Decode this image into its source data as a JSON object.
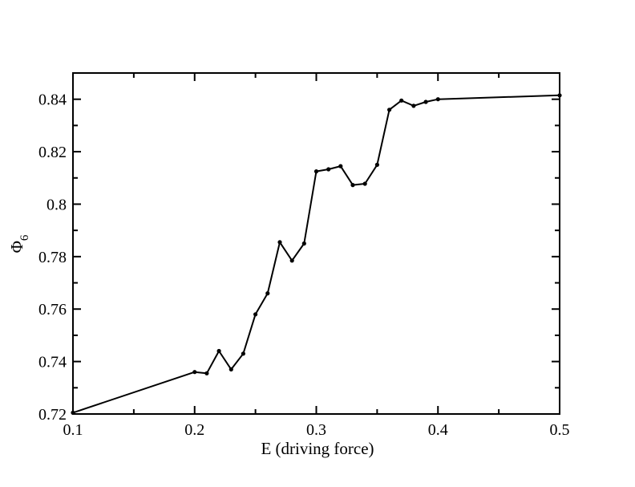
{
  "chart_data": {
    "type": "line",
    "xlabel": "E (driving force)",
    "ylabel": "Φ",
    "ylabel_subscript": "6",
    "xlim": [
      0.1,
      0.5
    ],
    "ylim": [
      0.72,
      0.85
    ],
    "x_ticks": [
      {
        "value": 0.1,
        "label": "0.1"
      },
      {
        "value": 0.2,
        "label": "0.2"
      },
      {
        "value": 0.3,
        "label": "0.3"
      },
      {
        "value": 0.4,
        "label": "0.4"
      },
      {
        "value": 0.5,
        "label": "0.5"
      }
    ],
    "y_ticks": [
      {
        "value": 0.72,
        "label": "0.72"
      },
      {
        "value": 0.74,
        "label": "0.74"
      },
      {
        "value": 0.76,
        "label": "0.76"
      },
      {
        "value": 0.78,
        "label": "0.78"
      },
      {
        "value": 0.8,
        "label": "0.8"
      },
      {
        "value": 0.82,
        "label": "0.82"
      },
      {
        "value": 0.84,
        "label": "0.84"
      }
    ],
    "x_minor_step": 0.05,
    "y_minor_step": 0.01,
    "grid": false,
    "legend": "none",
    "line_color": "#000000",
    "series": [
      {
        "x": [
          0.1,
          0.2,
          0.21,
          0.22,
          0.23,
          0.24,
          0.25,
          0.26,
          0.27,
          0.28,
          0.29,
          0.3,
          0.31,
          0.32,
          0.33,
          0.34,
          0.35,
          0.36,
          0.37,
          0.38,
          0.39,
          0.4,
          0.5
        ],
        "values": [
          0.7205,
          0.736,
          0.7355,
          0.744,
          0.737,
          0.743,
          0.758,
          0.766,
          0.7855,
          0.7785,
          0.785,
          0.8125,
          0.8133,
          0.8145,
          0.8073,
          0.8078,
          0.815,
          0.836,
          0.8395,
          0.8375,
          0.839,
          0.84,
          0.8415
        ]
      }
    ]
  }
}
